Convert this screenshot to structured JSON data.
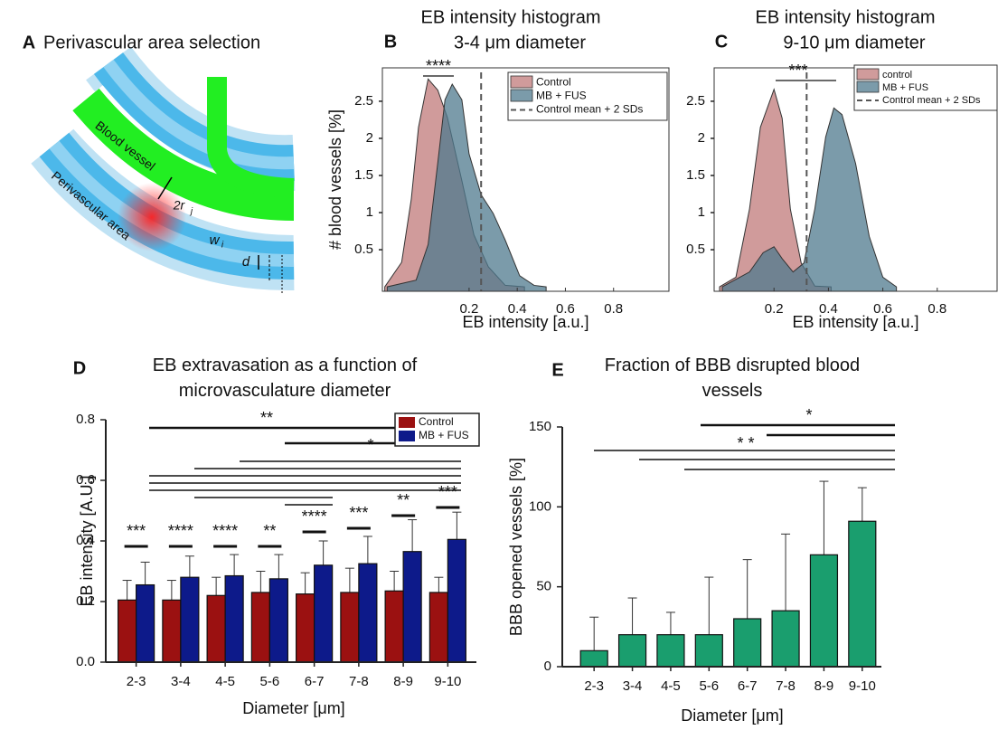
{
  "panel_a": {
    "letter": "A",
    "title": "Perivascular area selection",
    "vessel_label": "Blood vessel",
    "area_label": "Perivascular area",
    "radius_label": "2r",
    "radius_sub": "j",
    "gap_label": "w",
    "gap_sub": "i",
    "depth_label": "d"
  },
  "chart_data": [
    {
      "type": "area",
      "label": "B",
      "title": "EB intensity histogram",
      "subtitle": "3-4 μm diameter",
      "x_label": "EB intensity [a.u.]",
      "y_label": "# blood vessels [%]",
      "xlim": [
        -0.16,
        1.03
      ],
      "ylim": [
        -0.06,
        2.95
      ],
      "xticks": [
        0.2,
        0.4,
        0.6,
        0.8
      ],
      "yticks": [
        0.5,
        1,
        1.5,
        2,
        2.5
      ],
      "series": [
        {
          "name": "Control",
          "color": "#c07a7a",
          "x": [
            -0.15,
            -0.08,
            -0.04,
            -0.01,
            0.03,
            0.07,
            0.11,
            0.17,
            0.22,
            0.28,
            0.35,
            0.43
          ],
          "values": [
            0,
            0.33,
            1.18,
            2.15,
            2.8,
            2.65,
            2.28,
            1.43,
            0.7,
            0.27,
            0.02,
            0
          ]
        },
        {
          "name": "MB + FUS",
          "color": "#4f7a8e",
          "x": [
            -0.14,
            -0.02,
            0.03,
            0.07,
            0.1,
            0.13,
            0.17,
            0.2,
            0.25,
            0.3,
            0.35,
            0.41,
            0.47,
            0.52
          ],
          "values": [
            0,
            0.09,
            0.57,
            1.67,
            2.52,
            2.73,
            2.52,
            1.79,
            1.24,
            0.99,
            0.63,
            0.15,
            0.02,
            0
          ]
        }
      ],
      "reference_line": {
        "name": "Control mean + 2 SDs",
        "x": 0.25
      },
      "annotation": "****",
      "legend": "upper right"
    },
    {
      "type": "area",
      "label": "C",
      "title": "EB intensity histogram",
      "subtitle": "9-10 μm diameter",
      "x_label": "EB intensity [a.u.]",
      "xlim": [
        -0.02,
        1.02
      ],
      "ylim": [
        -0.06,
        2.95
      ],
      "xticks": [
        0.2,
        0.4,
        0.6,
        0.8
      ],
      "yticks": [
        0.5,
        1,
        1.5,
        2,
        2.5
      ],
      "series": [
        {
          "name": "control",
          "color": "#c07a7a",
          "x": [
            0,
            0.06,
            0.11,
            0.15,
            0.2,
            0.23,
            0.26,
            0.3,
            0.35,
            0.41
          ],
          "values": [
            0,
            0.13,
            1.05,
            2.15,
            2.66,
            2.27,
            1.05,
            0.32,
            0.01,
            0
          ]
        },
        {
          "name": "MB + FUS",
          "color": "#4f7a8e",
          "x": [
            0.01,
            0.11,
            0.16,
            0.2,
            0.23,
            0.27,
            0.31,
            0.35,
            0.39,
            0.42,
            0.45,
            0.5,
            0.55,
            0.6,
            0.65
          ],
          "values": [
            0,
            0.2,
            0.46,
            0.54,
            0.38,
            0.2,
            0.32,
            1.05,
            2.02,
            2.41,
            2.32,
            1.66,
            0.68,
            0.13,
            0
          ]
        }
      ],
      "reference_line": {
        "name": "Control mean + 2 SDs",
        "x": 0.32
      },
      "annotation": "***",
      "legend": "upper right"
    },
    {
      "type": "bar",
      "label": "D",
      "title": "EB extravasation as a function of microvasculature diameter",
      "x_label": "Diameter [μm]",
      "y_label": "EB intensity [A.U.]",
      "categories": [
        "2-3",
        "3-4",
        "4-5",
        "5-6",
        "6-7",
        "7-8",
        "8-9",
        "9-10"
      ],
      "ylim": [
        0,
        0.8
      ],
      "yticks": [
        {
          "value": 0,
          "label": "0.0"
        },
        0.2,
        0.4,
        0.6,
        0.8
      ],
      "series": [
        {
          "name": "Control",
          "color": "#9b1111",
          "values": [
            0.205,
            0.205,
            0.22,
            0.23,
            0.225,
            0.23,
            0.235,
            0.23
          ],
          "errors": [
            0.065,
            0.065,
            0.06,
            0.07,
            0.07,
            0.08,
            0.065,
            0.05
          ]
        },
        {
          "name": "MB + FUS",
          "color": "#0d1a8a",
          "values": [
            0.255,
            0.28,
            0.285,
            0.275,
            0.32,
            0.325,
            0.365,
            0.405
          ],
          "errors": [
            0.075,
            0.07,
            0.07,
            0.08,
            0.08,
            0.09,
            0.105,
            0.09
          ]
        }
      ],
      "group_annotations": [
        "***",
        "****",
        "****",
        "**",
        "****",
        "***",
        "**",
        "***"
      ],
      "bracket_annotations": [
        "**",
        "*"
      ],
      "legend": "upper right"
    },
    {
      "type": "bar",
      "label": "E",
      "title": "Fraction of BBB disrupted blood vessels",
      "x_label": "Diameter [μm]",
      "y_label": "BBB opened vessels [%]",
      "categories": [
        "2-3",
        "3-4",
        "4-5",
        "5-6",
        "6-7",
        "7-8",
        "8-9",
        "9-10"
      ],
      "ylim": [
        0,
        150
      ],
      "yticks": [
        0,
        50,
        100,
        150
      ],
      "color": "#1a9e6e",
      "values": [
        10,
        20,
        20,
        20,
        30,
        35,
        70,
        91
      ],
      "errors": [
        21,
        23,
        14,
        36,
        37,
        48,
        46,
        21
      ],
      "bracket_annotations": [
        "*",
        "* *"
      ]
    }
  ]
}
